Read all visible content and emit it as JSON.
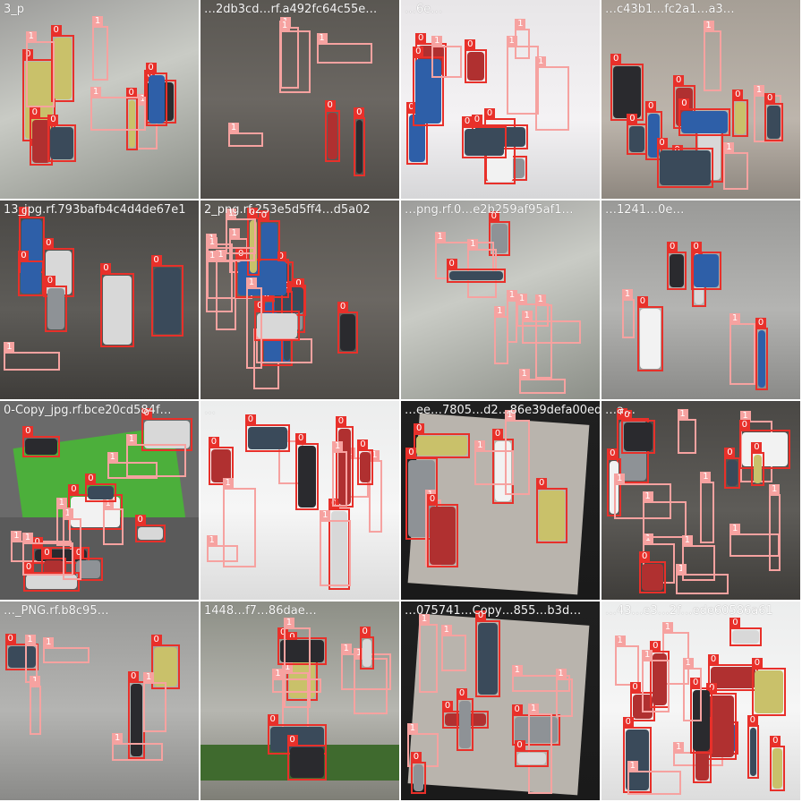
{
  "palette": {
    "class0": "#e8302a",
    "class1": "#f6a2a0",
    "caption": "#ffffff"
  },
  "class_labels": [
    "0",
    "1"
  ],
  "tiles": [
    {
      "caption": "3_p",
      "scene": "lot-gray-grass"
    },
    {
      "caption": "…2db3cd…rf.a492fc64c55e…",
      "scene": "lot-asphalt"
    },
    {
      "caption": "…6e…",
      "scene": "lot-bright"
    },
    {
      "caption": "…c43b1…fc2a1…a3…",
      "scene": "lot-beige"
    },
    {
      "caption": "13_jpg.rf.793bafb4c4d4de67e1",
      "scene": "lot-dark"
    },
    {
      "caption": "2_png.rf.253e5d5ff4…d5a02",
      "scene": "lot-asphalt"
    },
    {
      "caption": "…png.rf.0…e2b259af95af1…",
      "scene": "lot-gray-grass"
    },
    {
      "caption": "…1241…0e…",
      "scene": "lot-gray"
    },
    {
      "caption": "0-Copy_jpg.rf.bce20cd584f…",
      "scene": "lot-cartoon"
    },
    {
      "caption": "…",
      "scene": "lot-white"
    },
    {
      "caption": "…ee…7805…d2…86e39defa00ed…",
      "scene": "lot-rotated"
    },
    {
      "caption": "…a…",
      "scene": "lot-dark"
    },
    {
      "caption": "…_PNG.rf.b8c95…",
      "scene": "lot-gray"
    },
    {
      "caption": "1448…f7…86dae…",
      "scene": "lot-trees"
    },
    {
      "caption": "…075741…Copy…855…b3d…",
      "scene": "lot-rotated"
    },
    {
      "caption": "…43…e3…2f…ede60586a61",
      "scene": "lot-white"
    }
  ]
}
